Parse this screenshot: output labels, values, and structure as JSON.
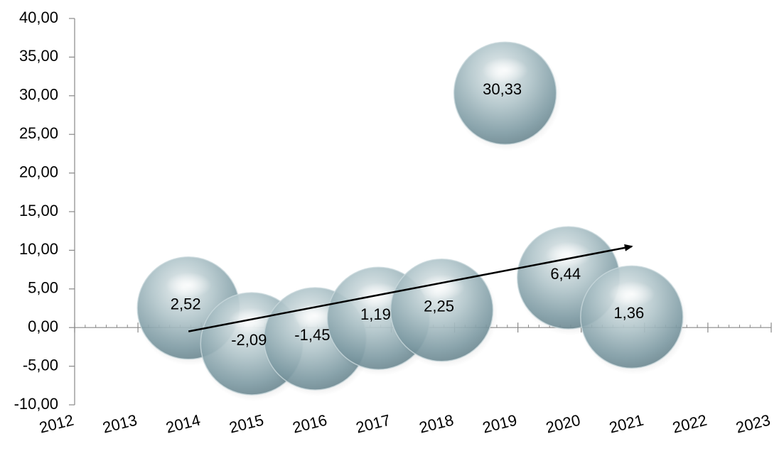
{
  "chart_data": {
    "type": "bubble",
    "title": "",
    "xlabel": "",
    "ylabel": "",
    "xlim": [
      2012,
      2023
    ],
    "ylim": [
      -10,
      40
    ],
    "x_ticks": [
      "2012",
      "2013",
      "2014",
      "2015",
      "2016",
      "2017",
      "2018",
      "2019",
      "2020",
      "2021",
      "2022",
      "2023"
    ],
    "y_ticks": [
      "40,00",
      "35,00",
      "30,00",
      "25,00",
      "20,00",
      "15,00",
      "10,00",
      "5,00",
      "0,00",
      "-5,00",
      "-10,00"
    ],
    "series": [
      {
        "x": [
          2014,
          2015,
          2016,
          2017,
          2018,
          2019,
          2020,
          2021
        ],
        "values": [
          2.52,
          -2.09,
          -1.45,
          1.19,
          2.25,
          30.33,
          6.44,
          1.36
        ],
        "labels": [
          "2,52",
          "-2,09",
          "-1,45",
          "1,19",
          "2,25",
          "30,33",
          "6,44",
          "1,36"
        ]
      }
    ],
    "trend_arrow": {
      "from": [
        2014,
        -0.5
      ],
      "to": [
        2021,
        10.5
      ]
    },
    "bubble_color": "#7f9fa8",
    "grid": false,
    "legend": "none"
  }
}
